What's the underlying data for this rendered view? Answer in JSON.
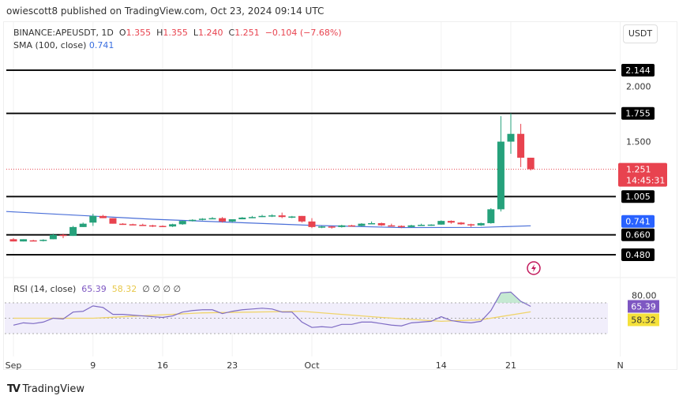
{
  "header": {
    "published": "owiescott8 published on TradingView.com, Oct 23, 2024 09:14 UTC"
  },
  "legend": {
    "symbol": "BINANCE:APEUSDT, 1D",
    "o_label": "O",
    "o": "1.355",
    "h_label": "H",
    "h": "1.355",
    "l_label": "L",
    "l": "1.240",
    "c_label": "C",
    "c": "1.251",
    "change": "−0.104 (−7.68%)",
    "sma_label": "SMA (100, close)",
    "sma_value": "0.741"
  },
  "currency_button": "USDT",
  "rsi_legend": {
    "label": "RSI (14, close)",
    "rsi": "65.39",
    "ma": "58.32",
    "extras": "∅ ∅ ∅ ∅"
  },
  "footer": {
    "logo_text": "TradingView"
  },
  "colors": {
    "up": "#26a17b",
    "down": "#e8434f",
    "sma": "#4a6fd8",
    "rsi": "#7e6bc4",
    "rsi_ma": "#f0d46a",
    "level": "#111111"
  },
  "icons": [
    "lightning-icon",
    "tradingview-logo-icon"
  ],
  "chart_data": [
    {
      "type": "candlestick",
      "title": "BINANCE:APEUSDT, 1D",
      "ylim": [
        0.46,
        2.2
      ],
      "y_ticks": [
        "2.000",
        "1.500"
      ],
      "x_ticks": [
        {
          "date": "Sep 1",
          "label": "Sep"
        },
        {
          "date": "Sep 9",
          "label": "9"
        },
        {
          "date": "Sep 16",
          "label": "16"
        },
        {
          "date": "Sep 23",
          "label": "23"
        },
        {
          "date": "Oct 1",
          "label": "Oct"
        },
        {
          "date": "Oct 14",
          "label": "14"
        },
        {
          "date": "Oct 21",
          "label": "21"
        },
        {
          "date": "Nov 1",
          "label": "N"
        }
      ],
      "horizontal_levels": [
        "2.144",
        "1.755",
        "1.005",
        "0.660",
        "0.480"
      ],
      "last_price": {
        "value": "1.251",
        "countdown": "14:45:31"
      },
      "sma_label_value": "0.741",
      "ohlc_start": "Sep 1",
      "ohlc": [
        [
          0.62,
          0.63,
          0.6,
          0.6
        ],
        [
          0.6,
          0.62,
          0.6,
          0.62
        ],
        [
          0.61,
          0.615,
          0.605,
          0.605
        ],
        [
          0.605,
          0.62,
          0.6,
          0.615
        ],
        [
          0.62,
          0.67,
          0.62,
          0.66
        ],
        [
          0.66,
          0.67,
          0.63,
          0.65
        ],
        [
          0.65,
          0.74,
          0.65,
          0.73
        ],
        [
          0.73,
          0.77,
          0.73,
          0.76
        ],
        [
          0.77,
          0.85,
          0.74,
          0.83
        ],
        [
          0.83,
          0.84,
          0.81,
          0.81
        ],
        [
          0.81,
          0.81,
          0.76,
          0.76
        ],
        [
          0.76,
          0.765,
          0.75,
          0.755
        ],
        [
          0.755,
          0.76,
          0.75,
          0.75
        ],
        [
          0.75,
          0.76,
          0.74,
          0.745
        ],
        [
          0.745,
          0.75,
          0.73,
          0.74
        ],
        [
          0.74,
          0.745,
          0.73,
          0.735
        ],
        [
          0.735,
          0.76,
          0.73,
          0.755
        ],
        [
          0.755,
          0.79,
          0.75,
          0.785
        ],
        [
          0.785,
          0.8,
          0.78,
          0.795
        ],
        [
          0.795,
          0.81,
          0.79,
          0.805
        ],
        [
          0.805,
          0.82,
          0.8,
          0.81
        ],
        [
          0.81,
          0.82,
          0.77,
          0.78
        ],
        [
          0.78,
          0.8,
          0.77,
          0.8
        ],
        [
          0.8,
          0.82,
          0.8,
          0.815
        ],
        [
          0.815,
          0.83,
          0.81,
          0.82
        ],
        [
          0.82,
          0.84,
          0.82,
          0.83
        ],
        [
          0.83,
          0.845,
          0.82,
          0.835
        ],
        [
          0.835,
          0.86,
          0.81,
          0.82
        ],
        [
          0.82,
          0.83,
          0.81,
          0.825
        ],
        [
          0.83,
          0.83,
          0.77,
          0.78
        ],
        [
          0.78,
          0.81,
          0.72,
          0.73
        ],
        [
          0.73,
          0.74,
          0.72,
          0.735
        ],
        [
          0.735,
          0.74,
          0.715,
          0.73
        ],
        [
          0.73,
          0.75,
          0.725,
          0.745
        ],
        [
          0.745,
          0.75,
          0.735,
          0.74
        ],
        [
          0.74,
          0.765,
          0.735,
          0.76
        ],
        [
          0.76,
          0.78,
          0.76,
          0.765
        ],
        [
          0.765,
          0.77,
          0.74,
          0.745
        ],
        [
          0.745,
          0.76,
          0.735,
          0.74
        ],
        [
          0.74,
          0.745,
          0.72,
          0.73
        ],
        [
          0.73,
          0.75,
          0.725,
          0.745
        ],
        [
          0.745,
          0.76,
          0.74,
          0.75
        ],
        [
          0.75,
          0.755,
          0.74,
          0.752
        ],
        [
          0.752,
          0.79,
          0.75,
          0.785
        ],
        [
          0.785,
          0.79,
          0.76,
          0.77
        ],
        [
          0.77,
          0.775,
          0.75,
          0.755
        ],
        [
          0.755,
          0.76,
          0.73,
          0.745
        ],
        [
          0.745,
          0.77,
          0.74,
          0.765
        ],
        [
          0.765,
          0.9,
          0.76,
          0.89
        ],
        [
          0.89,
          1.73,
          0.87,
          1.5
        ],
        [
          1.5,
          1.755,
          1.39,
          1.57
        ],
        [
          1.57,
          1.66,
          1.27,
          1.355
        ],
        [
          1.355,
          1.355,
          1.24,
          1.251
        ]
      ],
      "sma": [
        {
          "date": "Sep 1",
          "value": 0.87
        },
        {
          "date": "Sep 15",
          "value": 0.8
        },
        {
          "date": "Oct 1",
          "value": 0.745
        },
        {
          "date": "Oct 10",
          "value": 0.725
        },
        {
          "date": "Oct 18",
          "value": 0.727
        },
        {
          "date": "Oct 23",
          "value": 0.741
        }
      ]
    },
    {
      "type": "line",
      "title": "RSI (14, close)",
      "ylim": [
        20,
        90
      ],
      "y_ticks": [
        "80.00"
      ],
      "bands": [
        70,
        50,
        30
      ],
      "value_labels": [
        "65.39",
        "58.32"
      ],
      "rsi": [
        41,
        44,
        43,
        45,
        50,
        49,
        58,
        59,
        66,
        64,
        55,
        55,
        54,
        53,
        52,
        51,
        53,
        58,
        60,
        61,
        61,
        56,
        59,
        61,
        62,
        63,
        62,
        58,
        58,
        45,
        38,
        39,
        38,
        42,
        42,
        45,
        45,
        43,
        41,
        40,
        44,
        45,
        46,
        52,
        47,
        45,
        44,
        46,
        60,
        83,
        84,
        72,
        65.39
      ],
      "rsi_ma": [
        {
          "date": "Sep 1",
          "value": 50
        },
        {
          "date": "Sep 9",
          "value": 50
        },
        {
          "date": "Sep 20",
          "value": 57
        },
        {
          "date": "Sep 30",
          "value": 59
        },
        {
          "date": "Oct 8",
          "value": 51
        },
        {
          "date": "Oct 14",
          "value": 46
        },
        {
          "date": "Oct 18",
          "value": 48
        },
        {
          "date": "Oct 23",
          "value": 58.32
        }
      ]
    }
  ]
}
